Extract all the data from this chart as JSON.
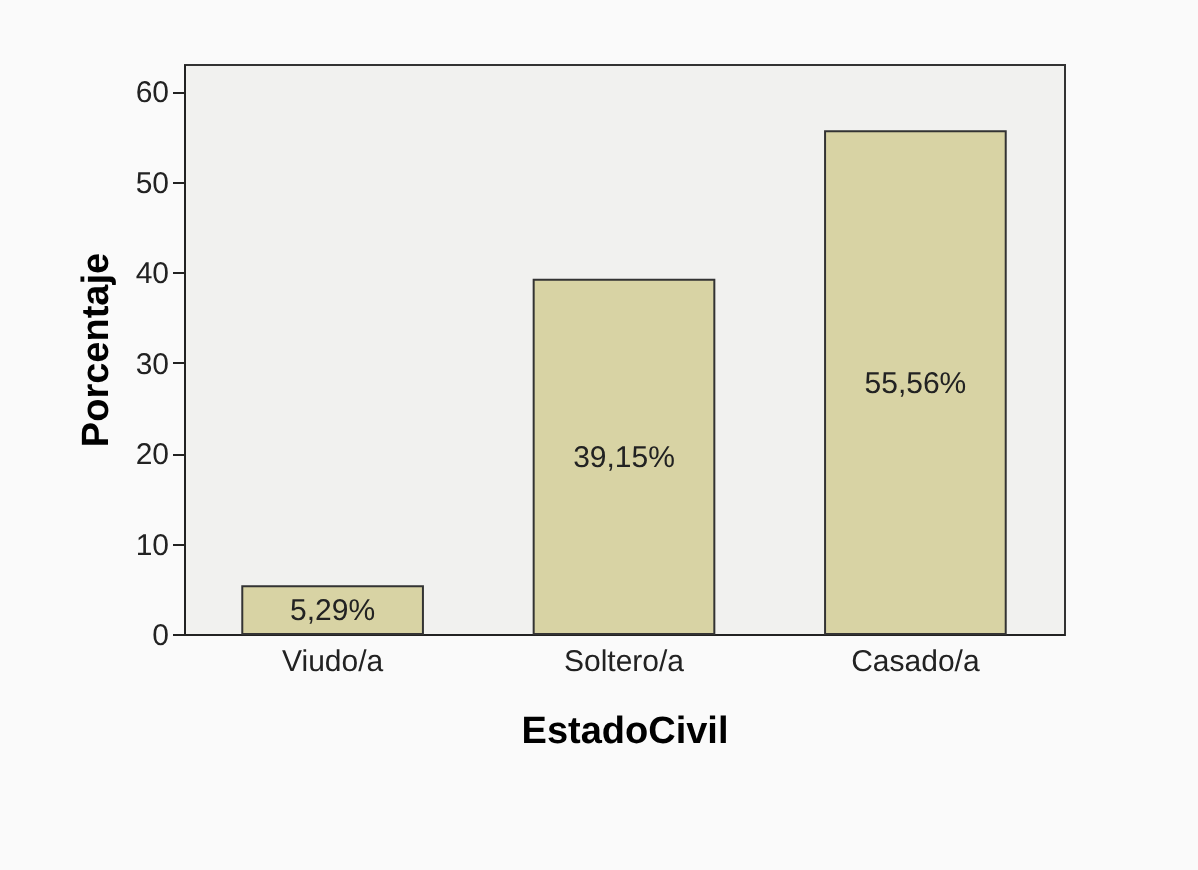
{
  "chart_data": {
    "type": "bar",
    "xlabel": "EstadoCivil",
    "ylabel": "Porcentaje",
    "categories": [
      "Viudo/a",
      "Soltero/a",
      "Casado/a"
    ],
    "values": [
      5.29,
      39.15,
      55.56
    ],
    "value_labels": [
      "5,29%",
      "39,15%",
      "55,56%"
    ],
    "color": "#d8d3a4",
    "ylim": [
      0,
      63
    ],
    "yticks": [
      0,
      10,
      20,
      30,
      40,
      50,
      60
    ],
    "grid": false
  }
}
